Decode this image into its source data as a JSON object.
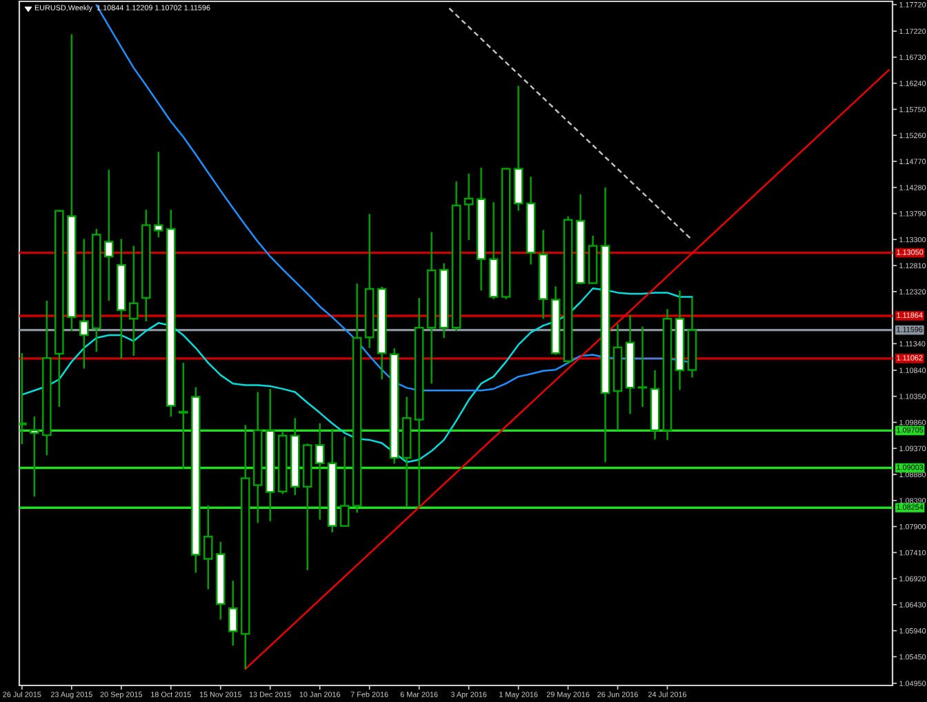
{
  "chart_data": {
    "type": "candlestick",
    "title": "EURUSD,Weekly  1.10844 1.12209 1.10702 1.11596",
    "x": [
      "2015-07-26",
      "2015-08-02",
      "2015-08-09",
      "2015-08-16",
      "2015-08-23",
      "2015-08-30",
      "2015-09-06",
      "2015-09-13",
      "2015-09-20",
      "2015-09-27",
      "2015-10-04",
      "2015-10-11",
      "2015-10-18",
      "2015-10-25",
      "2015-11-01",
      "2015-11-08",
      "2015-11-15",
      "2015-11-22",
      "2015-11-29",
      "2015-12-06",
      "2015-12-13",
      "2015-12-20",
      "2015-12-27",
      "2016-01-03",
      "2016-01-10",
      "2016-01-17",
      "2016-01-24",
      "2016-01-31",
      "2016-02-07",
      "2016-02-14",
      "2016-02-21",
      "2016-02-28",
      "2016-03-06",
      "2016-03-13",
      "2016-03-20",
      "2016-03-27",
      "2016-04-03",
      "2016-04-10",
      "2016-04-17",
      "2016-04-24",
      "2016-05-01",
      "2016-05-08",
      "2016-05-15",
      "2016-05-22",
      "2016-05-29",
      "2016-06-05",
      "2016-06-12",
      "2016-06-19",
      "2016-06-26",
      "2016-07-03",
      "2016-07-10",
      "2016-07-17",
      "2016-07-24",
      "2016-07-31",
      "2016-08-07"
    ],
    "ohlc": [
      [
        1.0984,
        1.1116,
        1.0945,
        1.0982
      ],
      [
        1.0971,
        1.0997,
        1.0846,
        1.0966
      ],
      [
        1.0962,
        1.1215,
        1.0924,
        1.1107
      ],
      [
        1.1115,
        1.1386,
        1.1015,
        1.1384
      ],
      [
        1.1374,
        1.1716,
        1.1158,
        1.1184
      ],
      [
        1.1176,
        1.1331,
        1.1087,
        1.115
      ],
      [
        1.1163,
        1.135,
        1.1119,
        1.1339
      ],
      [
        1.1326,
        1.1461,
        1.1215,
        1.1298
      ],
      [
        1.1282,
        1.1331,
        1.1106,
        1.1197
      ],
      [
        1.1181,
        1.1318,
        1.1111,
        1.121
      ],
      [
        1.122,
        1.1386,
        1.1176,
        1.1357
      ],
      [
        1.1357,
        1.1495,
        1.1334,
        1.1347
      ],
      [
        1.135,
        1.1386,
        1.0997,
        1.1017
      ],
      [
        1.1006,
        1.1098,
        1.0898,
        1.1004
      ],
      [
        1.1034,
        1.1052,
        1.0703,
        1.0737
      ],
      [
        1.0729,
        1.083,
        1.0672,
        1.0771
      ],
      [
        1.0738,
        1.0761,
        1.0615,
        1.0644
      ],
      [
        1.0636,
        1.0688,
        1.0566,
        1.0593
      ],
      [
        1.0588,
        1.0981,
        1.0522,
        1.0881
      ],
      [
        1.0868,
        1.1043,
        1.0797,
        1.0971
      ],
      [
        1.097,
        1.1049,
        1.08,
        1.0855
      ],
      [
        1.0856,
        1.0968,
        1.0851,
        1.0961
      ],
      [
        1.0961,
        1.0994,
        1.0849,
        1.0865
      ],
      [
        1.0865,
        1.0946,
        1.0708,
        1.0943
      ],
      [
        1.0943,
        1.0984,
        1.0803,
        1.0909
      ],
      [
        1.0909,
        1.0974,
        1.0779,
        1.0791
      ],
      [
        1.0791,
        1.0959,
        1.079,
        1.0829
      ],
      [
        1.0829,
        1.1247,
        1.0816,
        1.1145
      ],
      [
        1.1146,
        1.1378,
        1.1126,
        1.1237
      ],
      [
        1.1237,
        1.1241,
        1.1067,
        1.1116
      ],
      [
        1.1114,
        1.1125,
        1.0908,
        1.0919
      ],
      [
        1.0919,
        1.1034,
        1.0828,
        1.0994
      ],
      [
        1.0991,
        1.122,
        1.0828,
        1.1164
      ],
      [
        1.1164,
        1.1344,
        1.1059,
        1.1272
      ],
      [
        1.1273,
        1.1285,
        1.1145,
        1.1164
      ],
      [
        1.1164,
        1.1439,
        1.1158,
        1.1394
      ],
      [
        1.1396,
        1.1454,
        1.1329,
        1.1407
      ],
      [
        1.1406,
        1.1465,
        1.1234,
        1.1293
      ],
      [
        1.1293,
        1.14,
        1.1218,
        1.1222
      ],
      [
        1.1222,
        1.1465,
        1.1218,
        1.1463
      ],
      [
        1.1463,
        1.1619,
        1.1384,
        1.1398
      ],
      [
        1.1398,
        1.1448,
        1.1283,
        1.1305
      ],
      [
        1.1302,
        1.1348,
        1.1181,
        1.1218
      ],
      [
        1.1217,
        1.1242,
        1.1113,
        1.1116
      ],
      [
        1.1101,
        1.1374,
        1.1098,
        1.1367
      ],
      [
        1.1365,
        1.1415,
        1.1246,
        1.1248
      ],
      [
        1.1248,
        1.1337,
        1.1246,
        1.1318
      ],
      [
        1.1318,
        1.1428,
        1.0911,
        1.1041
      ],
      [
        1.1045,
        1.1171,
        1.0971,
        1.1127
      ],
      [
        1.1136,
        1.1188,
        1.1002,
        1.1051
      ],
      [
        1.1051,
        1.1166,
        1.1015,
        1.1052
      ],
      [
        1.1049,
        1.1084,
        1.0954,
        1.0971
      ],
      [
        1.0971,
        1.1199,
        1.0953,
        1.1181
      ],
      [
        1.1181,
        1.1234,
        1.1047,
        1.1084
      ],
      [
        1.10844,
        1.12209,
        1.10702,
        1.11596
      ]
    ],
    "color": "#00a000",
    "colors": [
      "#ffffff",
      "#ffffff",
      "#000000",
      "#000000",
      "#ffffff",
      "#ffffff",
      "#000000",
      "#ffffff",
      "#ffffff",
      "#000000",
      "#000000",
      "#ffffff",
      "#ffffff",
      "#ffffff",
      "#ffffff",
      "#000000",
      "#ffffff",
      "#ffffff",
      "#000000",
      "#000000",
      "#ffffff",
      "#000000",
      "#ffffff",
      "#000000",
      "#ffffff",
      "#ffffff",
      "#000000",
      "#000000",
      "#000000",
      "#ffffff",
      "#ffffff",
      "#000000",
      "#000000",
      "#000000",
      "#ffffff",
      "#000000",
      "#000000",
      "#ffffff",
      "#ffffff",
      "#000000",
      "#ffffff",
      "#ffffff",
      "#ffffff",
      "#ffffff",
      "#000000",
      "#ffffff",
      "#000000",
      "#ffffff",
      "#000000",
      "#ffffff",
      "#000000",
      "#ffffff",
      "#000000",
      "#ffffff",
      "#000000"
    ],
    "series": [
      {
        "type": "line",
        "color": "#00dede",
        "x": [
          "2015-07-26",
          "2015-08-02",
          "2015-08-09",
          "2015-08-16",
          "2015-08-23",
          "2015-08-30",
          "2015-09-06",
          "2015-09-13",
          "2015-09-20",
          "2015-09-27",
          "2015-10-04",
          "2015-10-11",
          "2015-10-18",
          "2015-10-25",
          "2015-11-01",
          "2015-11-08",
          "2015-11-15",
          "2015-11-22",
          "2015-11-29",
          "2015-12-06",
          "2015-12-13",
          "2015-12-20",
          "2015-12-27",
          "2016-01-03",
          "2016-01-10",
          "2016-01-17",
          "2016-01-24",
          "2016-01-31",
          "2016-02-07",
          "2016-02-14",
          "2016-02-21",
          "2016-02-28",
          "2016-03-06",
          "2016-03-13",
          "2016-03-20",
          "2016-03-27",
          "2016-04-03",
          "2016-04-10",
          "2016-04-17",
          "2016-04-24",
          "2016-05-01",
          "2016-05-08",
          "2016-05-15",
          "2016-05-22",
          "2016-05-29",
          "2016-06-05",
          "2016-06-12",
          "2016-06-19",
          "2016-06-26",
          "2016-07-03",
          "2016-07-10",
          "2016-07-17",
          "2016-07-24",
          "2016-07-31",
          "2016-08-07"
        ],
        "values": [
          1.1038,
          1.1046,
          1.1054,
          1.1067,
          1.11,
          1.1126,
          1.1145,
          1.115,
          1.115,
          1.1139,
          1.1158,
          1.1173,
          1.1168,
          1.115,
          1.1126,
          1.1098,
          1.1075,
          1.1059,
          1.1056,
          1.1056,
          1.1054,
          1.1049,
          1.1043,
          1.1023,
          1.1004,
          1.0984,
          1.0966,
          1.0955,
          1.0953,
          1.0947,
          1.0929,
          1.0911,
          1.0916,
          1.0932,
          1.0953,
          1.0989,
          1.1028,
          1.1059,
          1.1072,
          1.11,
          1.1132,
          1.1155,
          1.1168,
          1.1176,
          1.1189,
          1.1212,
          1.1238,
          1.1235,
          1.123,
          1.1228,
          1.1228,
          1.123,
          1.123,
          1.1222,
          1.1222
        ]
      },
      {
        "type": "line",
        "color": "#1e90ff",
        "x": [
          "2015-09-06",
          "2015-09-13",
          "2015-09-20",
          "2015-09-27",
          "2015-10-04",
          "2015-10-11",
          "2015-10-18",
          "2015-10-25",
          "2015-11-01",
          "2015-11-08",
          "2015-11-15",
          "2015-11-22",
          "2015-11-29",
          "2015-12-06",
          "2015-12-13",
          "2015-12-20",
          "2015-12-27",
          "2016-01-03",
          "2016-01-10",
          "2016-01-17",
          "2016-01-24",
          "2016-01-31",
          "2016-02-07",
          "2016-02-14",
          "2016-02-21",
          "2016-02-28",
          "2016-03-06",
          "2016-03-13",
          "2016-03-20",
          "2016-03-27",
          "2016-04-03",
          "2016-04-10",
          "2016-04-17",
          "2016-04-24",
          "2016-05-01",
          "2016-05-08",
          "2016-05-15",
          "2016-05-22",
          "2016-05-29",
          "2016-06-05",
          "2016-06-12",
          "2016-06-19",
          "2016-06-26",
          "2016-07-03",
          "2016-07-10",
          "2016-07-17",
          "2016-07-24",
          "2016-07-31",
          "2016-08-07"
        ],
        "values": [
          1.1771,
          1.1731,
          1.1692,
          1.1653,
          1.162,
          1.1586,
          1.1552,
          1.1523,
          1.149,
          1.1456,
          1.1422,
          1.1389,
          1.1357,
          1.1326,
          1.1298,
          1.1274,
          1.1251,
          1.1228,
          1.1204,
          1.1184,
          1.1162,
          1.1139,
          1.1111,
          1.1085,
          1.1062,
          1.1051,
          1.1046,
          1.1046,
          1.1046,
          1.1046,
          1.1046,
          1.1046,
          1.1049,
          1.1059,
          1.1072,
          1.1077,
          1.1083,
          1.1085,
          1.1098,
          1.1111,
          1.1113,
          1.1108,
          1.1106,
          1.1106,
          1.1106,
          1.1106,
          1.1106,
          1.1103,
          1.1098
        ]
      },
      {
        "type": "line",
        "color": "#ee0000",
        "x": [
          "2015-11-29",
          "2016-11-26"
        ],
        "values": [
          1.0522,
          1.1649
        ]
      },
      {
        "type": "line",
        "color": "#c0c0c0",
        "line_style": "dashed",
        "x": [
          "2016-03-23",
          "2016-08-07"
        ],
        "values": [
          1.1765,
          1.1329
        ]
      }
    ],
    "ref_lines": [
      {
        "axis": "y",
        "value": 1.1305,
        "label": "1.13050",
        "color": "#cc0000"
      },
      {
        "axis": "y",
        "value": 1.11864,
        "label": "1.11864",
        "color": "#cc0000"
      },
      {
        "axis": "y",
        "value": 1.11596,
        "label": "1.11596",
        "color": "#8a95a0"
      },
      {
        "axis": "y",
        "value": 1.11062,
        "label": "1.11062",
        "color": "#cc0000"
      },
      {
        "axis": "y",
        "value": 1.09705,
        "label": "1.09705",
        "color": "#22dd22"
      },
      {
        "axis": "y",
        "value": 1.09003,
        "label": "1.09003",
        "color": "#22dd22"
      },
      {
        "axis": "y",
        "value": 1.08254,
        "label": "1.08254",
        "color": "#22dd22"
      }
    ],
    "xlim": [
      "2015-07-24T12:00",
      "2016-11-28"
    ],
    "xticks": [
      {
        "value": "2015-07-26",
        "label": "26 Jul 2015"
      },
      {
        "value": "2015-08-23",
        "label": "23 Aug 2015"
      },
      {
        "value": "2015-09-20",
        "label": "20 Sep 2015"
      },
      {
        "value": "2015-10-18",
        "label": "18 Oct 2015"
      },
      {
        "value": "2015-11-15",
        "label": "15 Nov 2015"
      },
      {
        "value": "2015-12-13",
        "label": "13 Dec 2015"
      },
      {
        "value": "2016-01-10",
        "label": "10 Jan 2016"
      },
      {
        "value": "2016-02-07",
        "label": "7 Feb 2016"
      },
      {
        "value": "2016-03-06",
        "label": "6 Mar 2016"
      },
      {
        "value": "2016-04-03",
        "label": "3 Apr 2016"
      },
      {
        "value": "2016-05-01",
        "label": "1 May 2016"
      },
      {
        "value": "2016-05-29",
        "label": "29 May 2016"
      },
      {
        "value": "2016-06-26",
        "label": "26 Jun 2016"
      },
      {
        "value": "2016-07-24",
        "label": "24 Jul 2016"
      }
    ],
    "ylim": [
      1.0491,
      1.1778
    ],
    "yticks": [
      {
        "value": 1.1772,
        "label": "1.17720"
      },
      {
        "value": 1.1722,
        "label": "1.17220"
      },
      {
        "value": 1.1673,
        "label": "1.16730"
      },
      {
        "value": 1.1624,
        "label": "1.16240"
      },
      {
        "value": 1.1575,
        "label": "1.15750"
      },
      {
        "value": 1.1526,
        "label": "1.15260"
      },
      {
        "value": 1.1477,
        "label": "1.14770"
      },
      {
        "value": 1.1428,
        "label": "1.14280"
      },
      {
        "value": 1.1379,
        "label": "1.13790"
      },
      {
        "value": 1.133,
        "label": "1.13300"
      },
      {
        "value": 1.1281,
        "label": "1.12810"
      },
      {
        "value": 1.1232,
        "label": "1.12320"
      },
      {
        "value": 1.1134,
        "label": "1.11340"
      },
      {
        "value": 1.1084,
        "label": "1.10840"
      },
      {
        "value": 1.1035,
        "label": "1.10350"
      },
      {
        "value": 1.0986,
        "label": "1.09860"
      },
      {
        "value": 1.0937,
        "label": "1.09370"
      },
      {
        "value": 1.0888,
        "label": "1.08880"
      },
      {
        "value": 1.0839,
        "label": "1.08390"
      },
      {
        "value": 1.079,
        "label": "1.07900"
      },
      {
        "value": 1.0741,
        "label": "1.07410"
      },
      {
        "value": 1.0692,
        "label": "1.06920"
      },
      {
        "value": 1.0643,
        "label": "1.06430"
      },
      {
        "value": 1.0594,
        "label": "1.05940"
      },
      {
        "value": 1.0545,
        "label": "1.05450"
      },
      {
        "value": 1.0495,
        "label": "1.04950"
      }
    ]
  }
}
